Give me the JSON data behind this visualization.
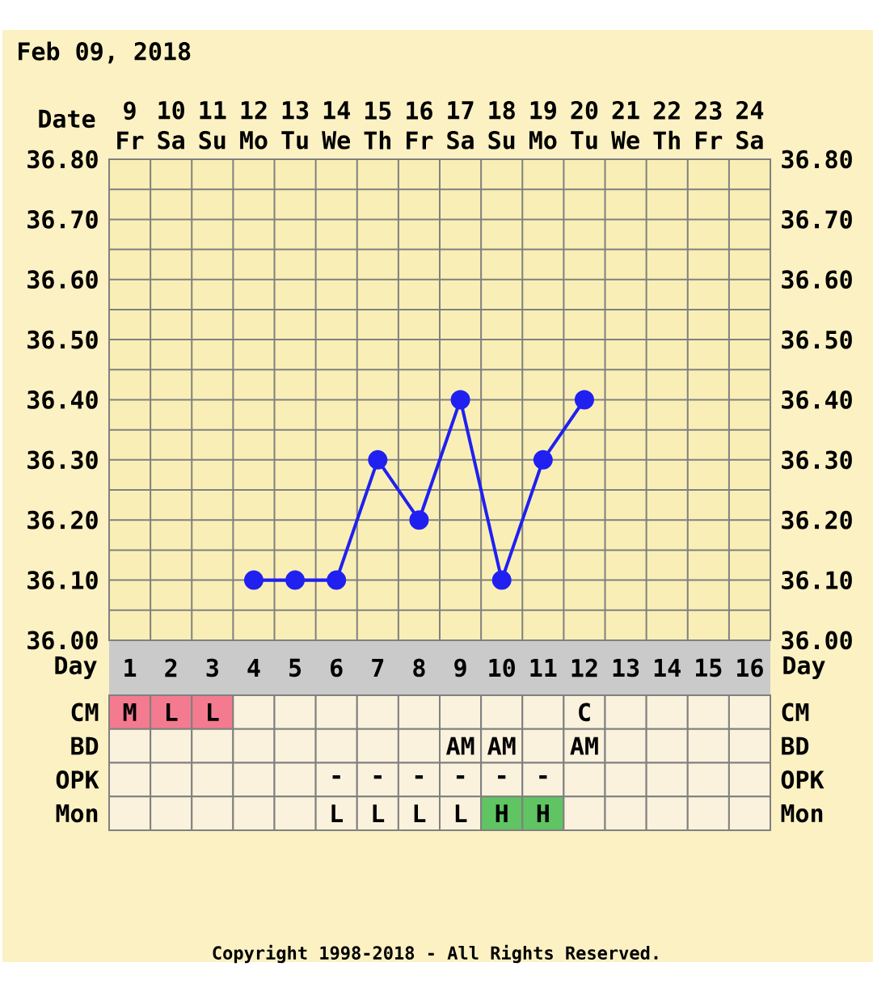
{
  "chart_data": [
    {
      "type": "line",
      "title": "Feb 09, 2018",
      "xlabel": "Day",
      "x2label": "Date",
      "categories": [
        "1",
        "2",
        "3",
        "4",
        "5",
        "6",
        "7",
        "8",
        "9",
        "10",
        "11",
        "12",
        "13",
        "14",
        "15",
        "16"
      ],
      "x2lim": [
        "2018-02-08T12:00",
        "2018-02-24T12:00"
      ],
      "x2ticks": [
        {
          "value": "2018-02-09",
          "label": "9 Fr"
        },
        {
          "value": "2018-02-10",
          "label": "10 Sa"
        },
        {
          "value": "2018-02-11",
          "label": "11 Su"
        },
        {
          "value": "2018-02-12",
          "label": "12 Mo"
        },
        {
          "value": "2018-02-13",
          "label": "13 Tu"
        },
        {
          "value": "2018-02-14",
          "label": "14 We"
        },
        {
          "value": "2018-02-15",
          "label": "15 Th"
        },
        {
          "value": "2018-02-16",
          "label": "16 Fr"
        },
        {
          "value": "2018-02-17",
          "label": "17 Sa"
        },
        {
          "value": "2018-02-18",
          "label": "18 Su"
        },
        {
          "value": "2018-02-19",
          "label": "19 Mo"
        },
        {
          "value": "2018-02-20",
          "label": "20 Tu"
        },
        {
          "value": "2018-02-21",
          "label": "21 We"
        },
        {
          "value": "2018-02-22",
          "label": "22 Th"
        },
        {
          "value": "2018-02-23",
          "label": "23 Fr"
        },
        {
          "value": "2018-02-24",
          "label": "24 Sa"
        }
      ],
      "ylim": [
        36.0,
        36.8
      ],
      "yticks": [
        {
          "value": 36.0,
          "label": "36.00"
        },
        {
          "value": 36.1,
          "label": "36.10"
        },
        {
          "value": 36.2,
          "label": "36.20"
        },
        {
          "value": 36.3,
          "label": "36.30"
        },
        {
          "value": 36.4,
          "label": "36.40"
        },
        {
          "value": 36.5,
          "label": "36.50"
        },
        {
          "value": 36.6,
          "label": "36.60"
        },
        {
          "value": 36.7,
          "label": "36.70"
        },
        {
          "value": 36.8,
          "label": "36.80"
        }
      ],
      "y2lim": [
        36.0,
        36.8
      ],
      "y2ticks": [
        {
          "value": 36.0,
          "label": "36.00"
        },
        {
          "value": 36.1,
          "label": "36.10"
        },
        {
          "value": 36.2,
          "label": "36.20"
        },
        {
          "value": 36.3,
          "label": "36.30"
        },
        {
          "value": 36.4,
          "label": "36.40"
        },
        {
          "value": 36.5,
          "label": "36.50"
        },
        {
          "value": 36.6,
          "label": "36.60"
        },
        {
          "value": 36.7,
          "label": "36.70"
        },
        {
          "value": 36.8,
          "label": "36.80"
        }
      ],
      "series": [
        {
          "color": "#2020f0",
          "values": [
            null,
            null,
            null,
            36.1,
            36.1,
            36.1,
            36.3,
            36.2,
            36.4,
            36.1,
            36.3,
            36.4,
            null,
            null,
            null,
            null
          ]
        }
      ],
      "marker": "circle",
      "grid": true,
      "annotations": [
        "Copyright 1998-2018 - All Rights Reserved."
      ]
    },
    {
      "type": "heatmap",
      "tick_labels": "y",
      "categories": [
        "1",
        "2",
        "3",
        "4",
        "5",
        "6",
        "7",
        "8",
        "9",
        "10",
        "11",
        "12",
        "13",
        "14",
        "15",
        "16"
      ],
      "y_categories": [
        "CM",
        "BD",
        "OPK",
        "Mon"
      ],
      "y2_categories": [
        "CM",
        "BD",
        "OPK",
        "Mon"
      ],
      "cells": [
        [
          null,
          null,
          null,
          null,
          null,
          null,
          null,
          null,
          null,
          null,
          null,
          null,
          null,
          null,
          null,
          null
        ],
        [
          null,
          null,
          null,
          null,
          null,
          null,
          null,
          null,
          null,
          null,
          null,
          null,
          null,
          null,
          null,
          null
        ],
        [
          null,
          null,
          null,
          null,
          null,
          null,
          null,
          null,
          null,
          null,
          null,
          null,
          null,
          null,
          null,
          null
        ],
        [
          null,
          null,
          null,
          null,
          null,
          null,
          null,
          null,
          null,
          null,
          null,
          null,
          null,
          null,
          null,
          null
        ]
      ],
      "cell_labels": [
        [
          "M",
          "L",
          "L",
          null,
          null,
          null,
          null,
          null,
          null,
          null,
          null,
          "C",
          null,
          null,
          null,
          null
        ],
        [
          null,
          null,
          null,
          null,
          null,
          null,
          null,
          null,
          "AM",
          "AM",
          null,
          "AM",
          null,
          null,
          null,
          null
        ],
        [
          null,
          null,
          null,
          null,
          null,
          "-",
          "-",
          "-",
          "-",
          "-",
          "-",
          null,
          null,
          null,
          null,
          null
        ],
        [
          null,
          null,
          null,
          null,
          null,
          "L",
          "L",
          "L",
          "L",
          "H",
          "H",
          null,
          null,
          null,
          null,
          null
        ]
      ],
      "colors": [
        [
          "#f47b8f",
          "#f47b8f",
          "#f47b8f",
          null,
          null,
          null,
          null,
          null,
          null,
          null,
          null,
          null,
          null,
          null,
          null,
          null
        ],
        [
          null,
          null,
          null,
          null,
          null,
          null,
          null,
          null,
          null,
          null,
          null,
          null,
          null,
          null,
          null,
          null
        ],
        [
          null,
          null,
          null,
          null,
          null,
          null,
          null,
          null,
          null,
          null,
          null,
          null,
          null,
          null,
          null,
          null
        ],
        [
          null,
          null,
          null,
          null,
          null,
          null,
          null,
          null,
          null,
          "#60c462",
          "#60c462",
          null,
          null,
          null,
          null,
          null
        ]
      ]
    }
  ]
}
